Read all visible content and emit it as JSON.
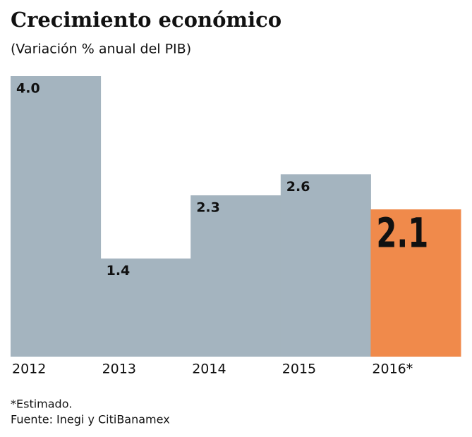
{
  "chart_data": {
    "type": "bar",
    "title": "Crecimiento económico",
    "subtitle": "(Variación % anual del PIB)",
    "categories": [
      "2012",
      "2013",
      "2014",
      "2015",
      "2016*"
    ],
    "values": [
      4.0,
      1.4,
      2.3,
      2.6,
      2.1
    ],
    "value_labels": [
      "4.0",
      "1.4",
      "2.3",
      "2.6",
      "2.1"
    ],
    "colors": [
      "#a4b4bf",
      "#a4b4bf",
      "#a4b4bf",
      "#a4b4bf",
      "#f08a4b"
    ],
    "ylim": [
      0,
      4
    ],
    "notes": [
      "*Estimado.",
      "Fuente: Inegi y CitiBanamex"
    ]
  }
}
